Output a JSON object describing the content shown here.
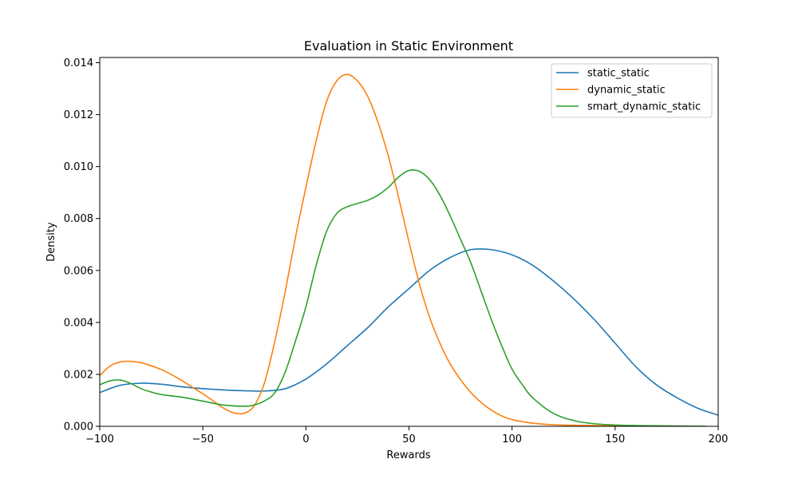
{
  "chart_data": {
    "type": "line",
    "title": "Evaluation in Static Environment",
    "xlabel": "Rewards",
    "ylabel": "Density",
    "xlim": [
      -100,
      200
    ],
    "ylim": [
      0,
      0.0142
    ],
    "xticks": [
      -100,
      -50,
      0,
      50,
      100,
      150,
      200
    ],
    "xtick_labels": [
      "−100",
      "−50",
      "0",
      "50",
      "100",
      "150",
      "200"
    ],
    "yticks": [
      0,
      0.002,
      0.004,
      0.006,
      0.008,
      0.01,
      0.012,
      0.014
    ],
    "ytick_labels": [
      "0.000",
      "0.002",
      "0.004",
      "0.006",
      "0.008",
      "0.010",
      "0.012",
      "0.014"
    ],
    "grid": false,
    "legend_position": "top-right",
    "series": [
      {
        "name": "static_static",
        "color": "#1f77b4",
        "x": [
          -100,
          -90,
          -80,
          -70,
          -60,
          -50,
          -40,
          -30,
          -20,
          -10,
          0,
          10,
          20,
          30,
          40,
          50,
          60,
          70,
          80,
          90,
          100,
          110,
          120,
          130,
          140,
          150,
          160,
          170,
          180,
          190,
          200
        ],
        "y": [
          0.0013,
          0.00158,
          0.00166,
          0.00162,
          0.00152,
          0.00145,
          0.0014,
          0.00137,
          0.00136,
          0.00145,
          0.00182,
          0.0024,
          0.0031,
          0.0038,
          0.0046,
          0.0053,
          0.006,
          0.0065,
          0.0068,
          0.0068,
          0.0066,
          0.0062,
          0.0056,
          0.0049,
          0.0041,
          0.0032,
          0.0023,
          0.0016,
          0.0011,
          0.0007,
          0.00043
        ]
      },
      {
        "name": "dynamic_static",
        "color": "#ff7f0e",
        "x": [
          -100,
          -95,
          -90,
          -85,
          -80,
          -75,
          -70,
          -65,
          -60,
          -55,
          -50,
          -45,
          -40,
          -35,
          -30,
          -25,
          -20,
          -15,
          -10,
          -5,
          0,
          5,
          10,
          15,
          20,
          25,
          30,
          35,
          40,
          45,
          50,
          55,
          60,
          65,
          70,
          75,
          80,
          85,
          90,
          95,
          100,
          110,
          120,
          130,
          140,
          150,
          160,
          170,
          180,
          194
        ],
        "y": [
          0.00195,
          0.00232,
          0.00248,
          0.0025,
          0.00245,
          0.00233,
          0.00218,
          0.00198,
          0.00175,
          0.0015,
          0.00125,
          0.00098,
          0.0007,
          0.00052,
          0.0005,
          0.0008,
          0.0017,
          0.0033,
          0.0052,
          0.0073,
          0.0092,
          0.011,
          0.0125,
          0.0133,
          0.01355,
          0.0133,
          0.0127,
          0.0117,
          0.0104,
          0.0088,
          0.0071,
          0.0055,
          0.0042,
          0.0032,
          0.0024,
          0.0018,
          0.0013,
          0.00092,
          0.00062,
          0.0004,
          0.00026,
          0.00012,
          6e-05,
          4e-05,
          3e-05,
          2e-05,
          1e-05,
          5e-06,
          2e-06,
          0.0
        ]
      },
      {
        "name": "smart_dynamic_static",
        "color": "#2ca02c",
        "x": [
          -100,
          -95,
          -90,
          -85,
          -80,
          -75,
          -70,
          -60,
          -50,
          -40,
          -30,
          -25,
          -20,
          -15,
          -10,
          -5,
          0,
          5,
          10,
          15,
          20,
          25,
          30,
          35,
          40,
          45,
          50,
          55,
          60,
          65,
          70,
          75,
          80,
          85,
          90,
          95,
          100,
          105,
          110,
          120,
          130,
          140,
          150,
          160,
          170,
          180,
          194
        ],
        "y": [
          0.0016,
          0.00175,
          0.00178,
          0.00165,
          0.00145,
          0.00132,
          0.00122,
          0.00112,
          0.00097,
          0.00082,
          0.00077,
          0.00082,
          0.00098,
          0.0013,
          0.0021,
          0.0033,
          0.0046,
          0.0062,
          0.0075,
          0.0082,
          0.00845,
          0.00858,
          0.0087,
          0.0089,
          0.0092,
          0.0096,
          0.00985,
          0.00982,
          0.0095,
          0.0089,
          0.0081,
          0.0072,
          0.0063,
          0.0052,
          0.0041,
          0.0031,
          0.0022,
          0.0016,
          0.0011,
          0.0005,
          0.00022,
          0.0001,
          5e-05,
          3e-05,
          2e-05,
          1e-05,
          0.0
        ]
      }
    ]
  }
}
